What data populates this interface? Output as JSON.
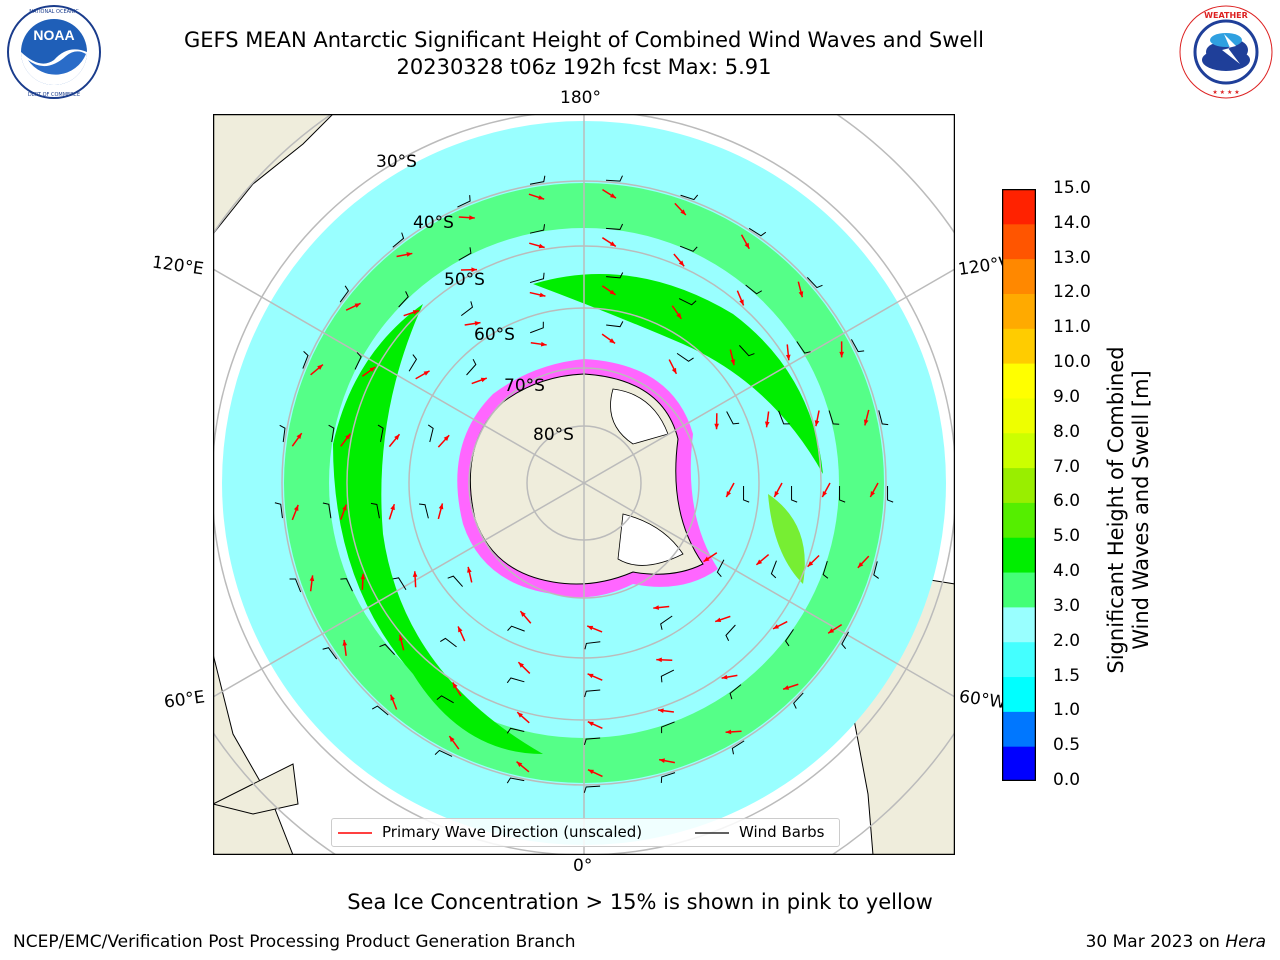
{
  "header": {
    "title_line1": "GEFS MEAN Antarctic Significant Height of Combined Wind Waves and Swell",
    "title_line2": "20230328 t06z 192h fcst   Max: 5.91"
  },
  "logos": {
    "left": {
      "name": "NOAA",
      "ring_text": "NATIONAL OCEANIC AND ATMOSPHERIC ADMINISTRATION · U.S. DEPARTMENT OF COMMERCE"
    },
    "right": {
      "name": "NATIONAL WEATHER SERVICE"
    }
  },
  "map": {
    "projection": "south polar stereographic",
    "longitude_labels": {
      "top": "180°",
      "bottom": "0°",
      "upper_left": "120°E",
      "upper_right": "120°W",
      "lower_left": "60°E",
      "lower_right": "60°W"
    },
    "latitude_labels": [
      "30°S",
      "40°S",
      "50°S",
      "60°S",
      "70°S",
      "80°S"
    ],
    "colors": {
      "land": "#efeddc",
      "ice_shelf": "#ffffff",
      "sea_ice": "#ff66ff",
      "primary_wave_direction": "#ff0000",
      "wind_barbs": "#000000",
      "graticule": "#bbbbbb"
    }
  },
  "colorbar": {
    "label_line1": "Significant Height of Combined",
    "label_line2": "Wind Waves and Swell [m]",
    "ticks": [
      "0.0",
      "0.5",
      "1.0",
      "1.5",
      "2.0",
      "3.0",
      "4.0",
      "5.0",
      "6.0",
      "7.0",
      "8.0",
      "9.0",
      "10.0",
      "11.0",
      "12.0",
      "13.0",
      "14.0",
      "15.0"
    ],
    "colors": [
      "#0000ff",
      "#0077ff",
      "#00ffff",
      "#44ffff",
      "#99ffff",
      "#44ff77",
      "#00ee00",
      "#55ee00",
      "#99ee00",
      "#ccff00",
      "#eeff00",
      "#ffff00",
      "#ffcc00",
      "#ffaa00",
      "#ff8800",
      "#ff5500",
      "#ff2200",
      "#ff0000"
    ]
  },
  "legend": {
    "wave_label": "Primary Wave Direction (unscaled)",
    "barb_label": "Wind Barbs"
  },
  "footer": {
    "note": "Sea Ice Concentration > 15% is shown in pink to yellow",
    "credit_left": "NCEP/EMC/Verification Post Processing Product Generation Branch",
    "credit_date": "30 Mar 2023 on",
    "credit_machine": "Hera"
  }
}
